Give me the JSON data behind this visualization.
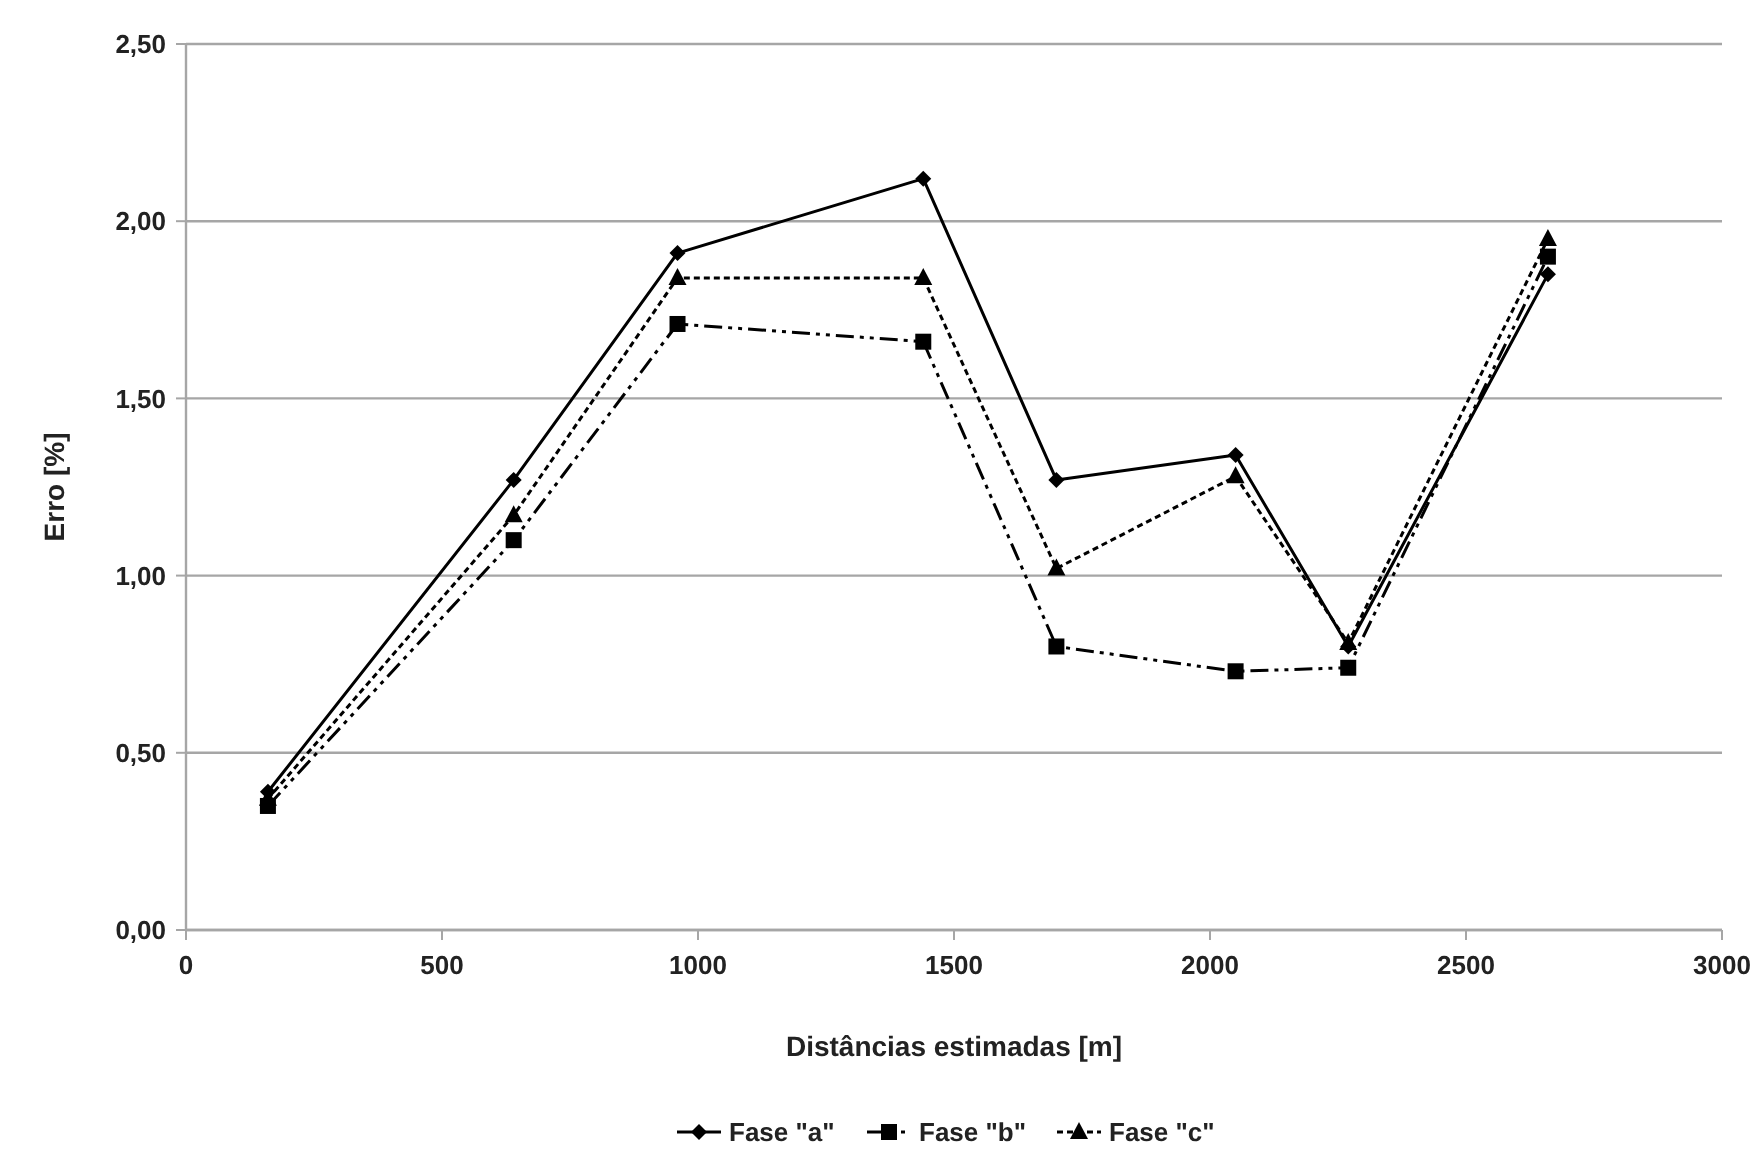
{
  "chart_data": {
    "type": "line",
    "xlabel": "Distâncias estimadas [m]",
    "ylabel": "Erro [%]",
    "xlim": [
      0,
      3000
    ],
    "xticks": [
      0,
      500,
      1000,
      1500,
      2000,
      2500,
      3000
    ],
    "ylim": [
      0,
      2.5
    ],
    "yticks": [
      {
        "value": 0,
        "label": "0,00"
      },
      {
        "value": 0.5,
        "label": "0,50"
      },
      {
        "value": 1,
        "label": "1,00"
      },
      {
        "value": 1.5,
        "label": "1,50"
      },
      {
        "value": 2,
        "label": "2,00"
      },
      {
        "value": 2.5,
        "label": "2,50"
      }
    ],
    "grid": "y",
    "legend": "bottom",
    "x": [
      160,
      640,
      960,
      1440,
      1700,
      2050,
      2270,
      2660
    ],
    "series": [
      {
        "name": "Fase \"a\"",
        "color": "#000000",
        "marker": "diamond",
        "line_style": "solid",
        "values": [
          0.39,
          1.27,
          1.91,
          2.12,
          1.27,
          1.34,
          0.8,
          1.85
        ]
      },
      {
        "name": "Fase \"b\"",
        "color": "#000000",
        "marker": "square",
        "line_style": "dashed",
        "values": [
          0.35,
          1.1,
          1.71,
          1.66,
          0.8,
          0.73,
          0.74,
          1.9
        ]
      },
      {
        "name": "Fase \"c\"",
        "color": "#000000",
        "marker": "triangle",
        "line_style": "dotted",
        "values": [
          0.37,
          1.17,
          1.84,
          1.84,
          1.02,
          1.28,
          0.81,
          1.95
        ]
      }
    ]
  }
}
